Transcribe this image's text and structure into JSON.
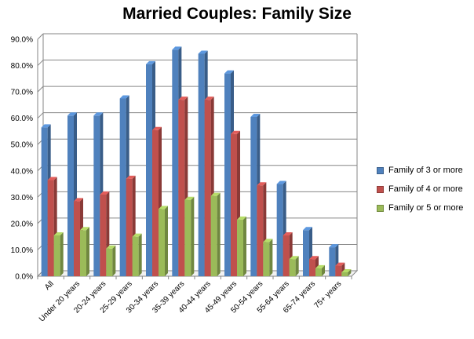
{
  "chart_data": {
    "type": "bar",
    "title": "Married Couples: Family Size",
    "xlabel": "",
    "ylabel": "",
    "ylim": [
      0,
      90
    ],
    "y_ticks": [
      "0.0%",
      "10.0%",
      "20.0%",
      "30.0%",
      "40.0%",
      "50.0%",
      "60.0%",
      "70.0%",
      "80.0%",
      "90.0%"
    ],
    "categories": [
      "All",
      "Under 20 years",
      "20-24 years",
      "25-29 years",
      "30-34 years",
      "35-39 years",
      "40-44 years",
      "45-49 years",
      "50-54 years",
      "55-64 years",
      "65-74 years",
      "75+ years"
    ],
    "series": [
      {
        "name": "Family of 3 or more",
        "color": "#4f81bd",
        "values": [
          56.5,
          61,
          61,
          67.5,
          80.5,
          86,
          84.5,
          77,
          60.5,
          35,
          17.5,
          11
        ]
      },
      {
        "name": "Family of 4 or more",
        "color": "#c0504d",
        "values": [
          36.5,
          28.5,
          31,
          37,
          55.5,
          67,
          67,
          54,
          34.5,
          15.5,
          6.5,
          4
        ]
      },
      {
        "name": "Family or 5 or more",
        "color": "#9bbb59",
        "values": [
          15.5,
          17.5,
          10.5,
          15,
          25.5,
          29,
          30.5,
          21.5,
          13,
          6.5,
          3,
          1.5
        ]
      }
    ],
    "grid": true,
    "legend_position": "right"
  }
}
